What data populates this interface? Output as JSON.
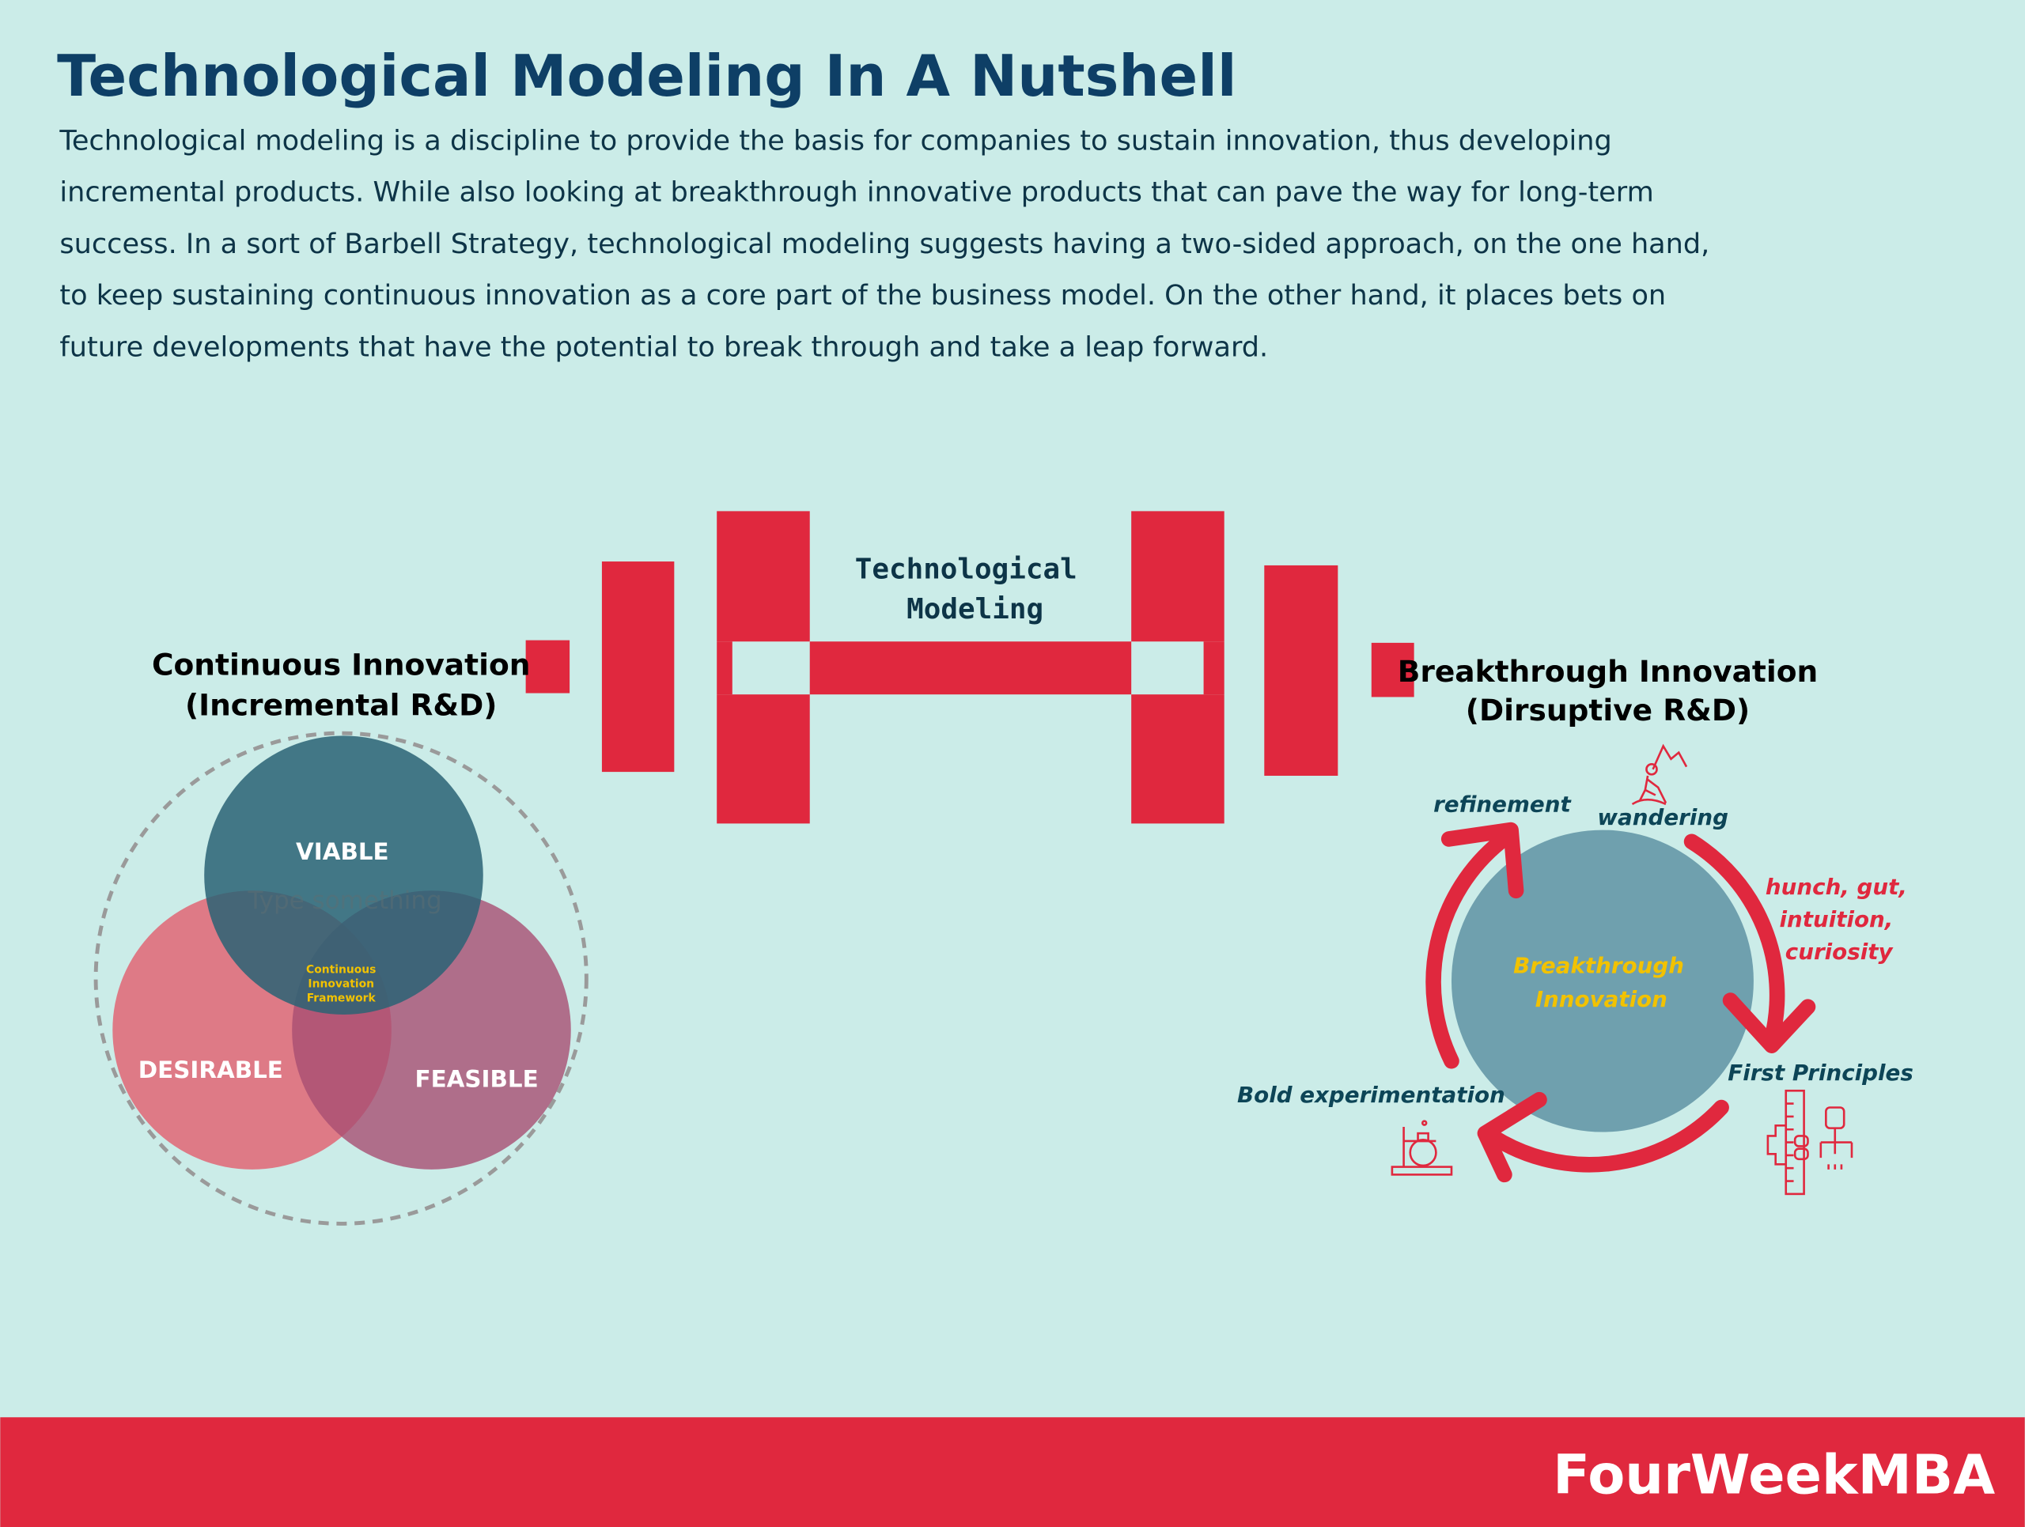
{
  "title": "Technological Modeling In A Nutshell",
  "description_lines": [
    "Technological modeling is a discipline to provide the basis for companies to sustain innovation, thus developing",
    "incremental products. While also looking at breakthrough innovative products that can pave the way for long-term",
    "success. In a sort of Barbell Strategy, technological modeling suggests having a two-sided approach, on the one hand,",
    "to keep sustaining continuous innovation as a core part of the business model. On the other hand, it places bets on",
    "future developments that have the potential to break through and take a leap forward."
  ],
  "barbell": {
    "label_line1": "Technological",
    "label_line2": "Modeling",
    "left_line1": "Continuous Innovation",
    "left_line2": "(Incremental R&D)",
    "right_line1": "Breakthrough Innovation",
    "right_line2": "(Dirsuptive R&D)"
  },
  "venn": {
    "top": "VIABLE",
    "left": "DESIRABLE",
    "right": "FEASIBLE",
    "placeholder": "Type something",
    "center_line1": "Continuous",
    "center_line2": "Innovation",
    "center_line3": "Framework"
  },
  "cycle": {
    "center_line1": "Breakthrough",
    "center_line2": "Innovation",
    "refinement": "refinement",
    "wandering": "wandering",
    "hunch_line1": "hunch, gut,",
    "hunch_line2": "intuition,",
    "hunch_line3": "curiosity",
    "first_principles": "First Principles",
    "bold_experimentation": "Bold experimentation"
  },
  "footer": {
    "brand": "FourWeekMBA"
  },
  "colors": {
    "background": "#cbece8",
    "accent_red": "#e0283e",
    "title_blue": "#0e3f66",
    "viable": "#2f6a7c",
    "desirable": "#e06a78",
    "feasible": "#b0587a",
    "cycle_circle": "#6fa0ae",
    "highlight_yellow": "#f2c200"
  }
}
